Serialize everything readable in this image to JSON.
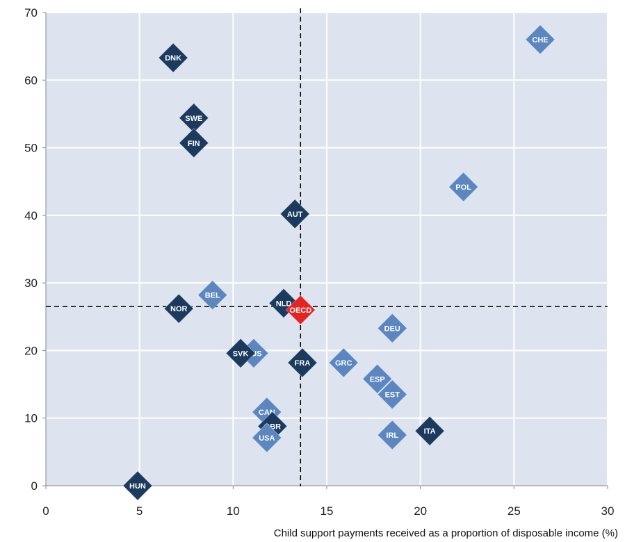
{
  "chart_data": {
    "type": "scatter",
    "title": "",
    "xlabel": "Child support  payments received as a proportion  of disposable income (%)",
    "ylabel": "",
    "xlim": [
      0,
      30
    ],
    "ylim": [
      0,
      70
    ],
    "xticks": [
      0,
      5,
      10,
      15,
      20,
      25,
      30
    ],
    "yticks": [
      0,
      10,
      20,
      30,
      40,
      50,
      60,
      70
    ],
    "grid": true,
    "reference_lines": {
      "x": 13.6,
      "y": 26.5
    },
    "colors": {
      "plot_bg": "#dde4ef",
      "dark": "#1b3a5e",
      "light": "#5b86c0",
      "highlight": "#e52421",
      "grid": "#ffffff",
      "ref_line": "#000000"
    },
    "points": [
      {
        "label": "DNK",
        "x": 6.8,
        "y": 63.3,
        "group": "dark"
      },
      {
        "label": "CHE",
        "x": 26.4,
        "y": 66.0,
        "group": "light"
      },
      {
        "label": "SWE",
        "x": 7.9,
        "y": 54.4,
        "group": "dark"
      },
      {
        "label": "FIN",
        "x": 7.9,
        "y": 50.7,
        "group": "dark"
      },
      {
        "label": "POL",
        "x": 22.3,
        "y": 44.2,
        "group": "light"
      },
      {
        "label": "AUT",
        "x": 13.3,
        "y": 40.2,
        "group": "dark"
      },
      {
        "label": "BEL",
        "x": 8.9,
        "y": 28.2,
        "group": "light"
      },
      {
        "label": "NOR",
        "x": 7.1,
        "y": 26.2,
        "group": "dark"
      },
      {
        "label": "NLD",
        "x": 12.7,
        "y": 27.0,
        "group": "dark"
      },
      {
        "label": "DEU",
        "x": 18.5,
        "y": 23.3,
        "group": "light"
      },
      {
        "label": "AUS",
        "x": 11.1,
        "y": 19.6,
        "group": "light"
      },
      {
        "label": "SVK",
        "x": 10.4,
        "y": 19.6,
        "group": "dark"
      },
      {
        "label": "FRA",
        "x": 13.7,
        "y": 18.2,
        "group": "dark"
      },
      {
        "label": "GRC",
        "x": 15.9,
        "y": 18.2,
        "group": "light"
      },
      {
        "label": "ESP",
        "x": 17.7,
        "y": 15.8,
        "group": "light"
      },
      {
        "label": "EST",
        "x": 18.5,
        "y": 13.5,
        "group": "light"
      },
      {
        "label": "CAN",
        "x": 11.8,
        "y": 10.9,
        "group": "light"
      },
      {
        "label": "GBR",
        "x": 12.1,
        "y": 8.8,
        "group": "dark"
      },
      {
        "label": "USA",
        "x": 11.8,
        "y": 7.1,
        "group": "light"
      },
      {
        "label": "IRL",
        "x": 18.5,
        "y": 7.5,
        "group": "light"
      },
      {
        "label": "ITA",
        "x": 20.5,
        "y": 8.1,
        "group": "dark"
      },
      {
        "label": "HUN",
        "x": 4.9,
        "y": 0.0,
        "group": "dark"
      },
      {
        "label": "OECD",
        "x": 13.6,
        "y": 26.0,
        "group": "highlight"
      }
    ]
  }
}
